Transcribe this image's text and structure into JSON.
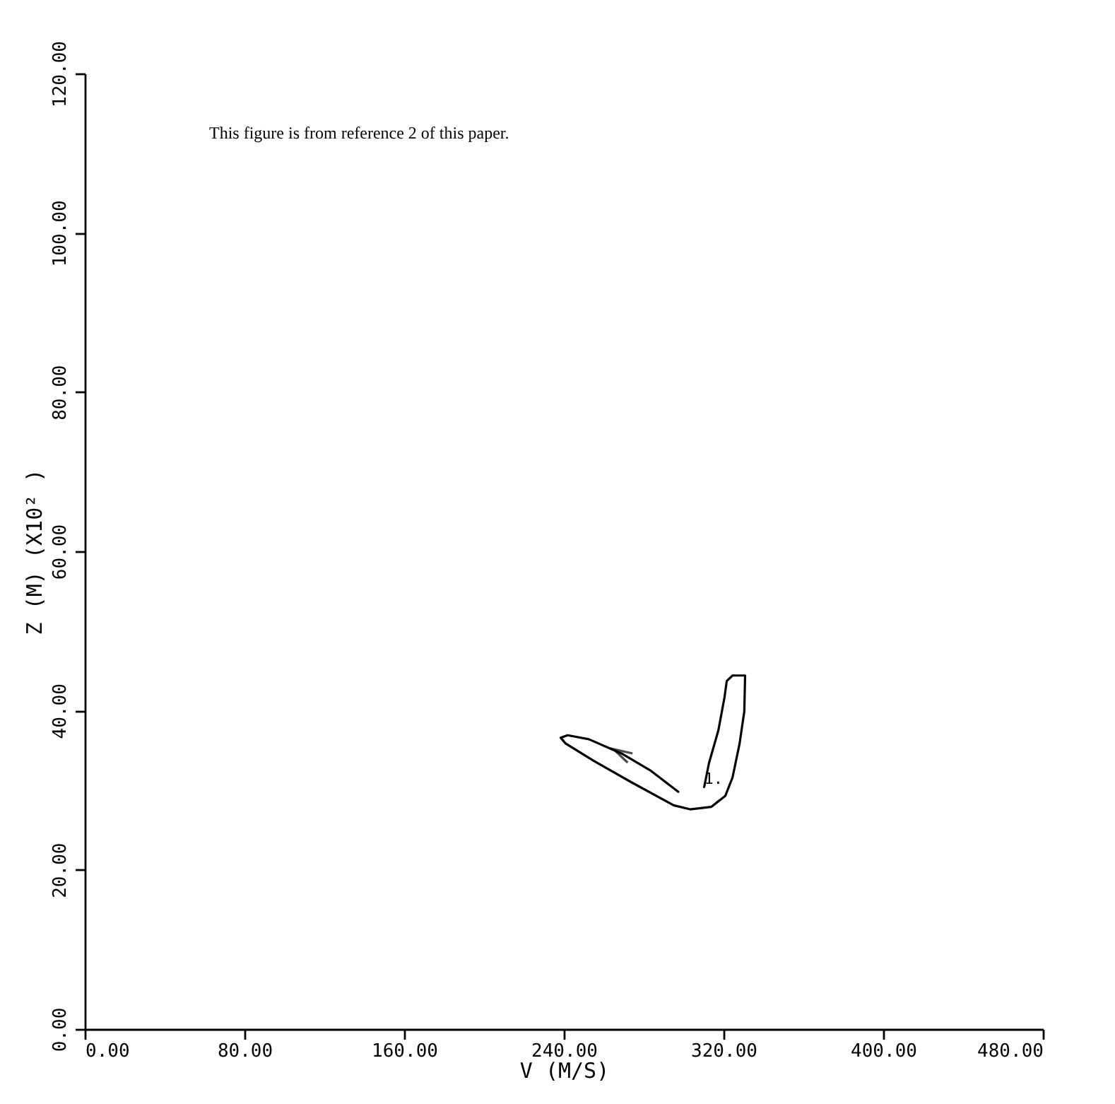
{
  "chart_data": {
    "type": "line",
    "xlabel": "V (M/S)",
    "ylabel": "Z (M)    (X10² )",
    "annotations": [
      "This figure is from reference 2 of this paper.",
      {
        "text": "1.",
        "x": 310.3,
        "y": 30.4
      }
    ],
    "xlim": [
      0,
      480
    ],
    "ylim": [
      0,
      120
    ],
    "xticks": [
      {
        "value": 0,
        "label": "0.00"
      },
      {
        "value": 80,
        "label": "80.00"
      },
      {
        "value": 160,
        "label": "160.00"
      },
      {
        "value": 240,
        "label": "240.00"
      },
      {
        "value": 320,
        "label": "320.00"
      },
      {
        "value": 400,
        "label": "400.00"
      },
      {
        "value": 480,
        "label": "480.00"
      }
    ],
    "yticks": [
      {
        "value": 0,
        "label": "0.00"
      },
      {
        "value": 20,
        "label": "20.00"
      },
      {
        "value": 40,
        "label": "40.00"
      },
      {
        "value": 60,
        "label": "60.00"
      },
      {
        "value": 80,
        "label": "80.00"
      },
      {
        "value": 100,
        "label": "100.00"
      },
      {
        "value": 120,
        "label": "120.00"
      }
    ],
    "grid": false,
    "legend": false,
    "marker": "none",
    "line_style": "solid",
    "series": [
      {
        "color": "#000000",
        "x": [
          310.3,
          312.7,
          317.4,
          320.5,
          321.6,
          324.5,
          330.8,
          330.4,
          328.0,
          324.5,
          320.9,
          313.8,
          303.2,
          295.0,
          273.8,
          254.9,
          240.7,
          238.4,
          241.9,
          252.5,
          269.0,
          283.2,
          297.3
        ],
        "values": [
          30.4,
          33.4,
          37.5,
          41.7,
          43.7,
          44.4,
          44.4,
          39.9,
          35.8,
          31.6,
          29.3,
          27.9,
          27.6,
          28.1,
          31.0,
          33.7,
          35.9,
          36.6,
          36.9,
          36.4,
          34.6,
          32.5,
          29.8
        ]
      }
    ]
  }
}
